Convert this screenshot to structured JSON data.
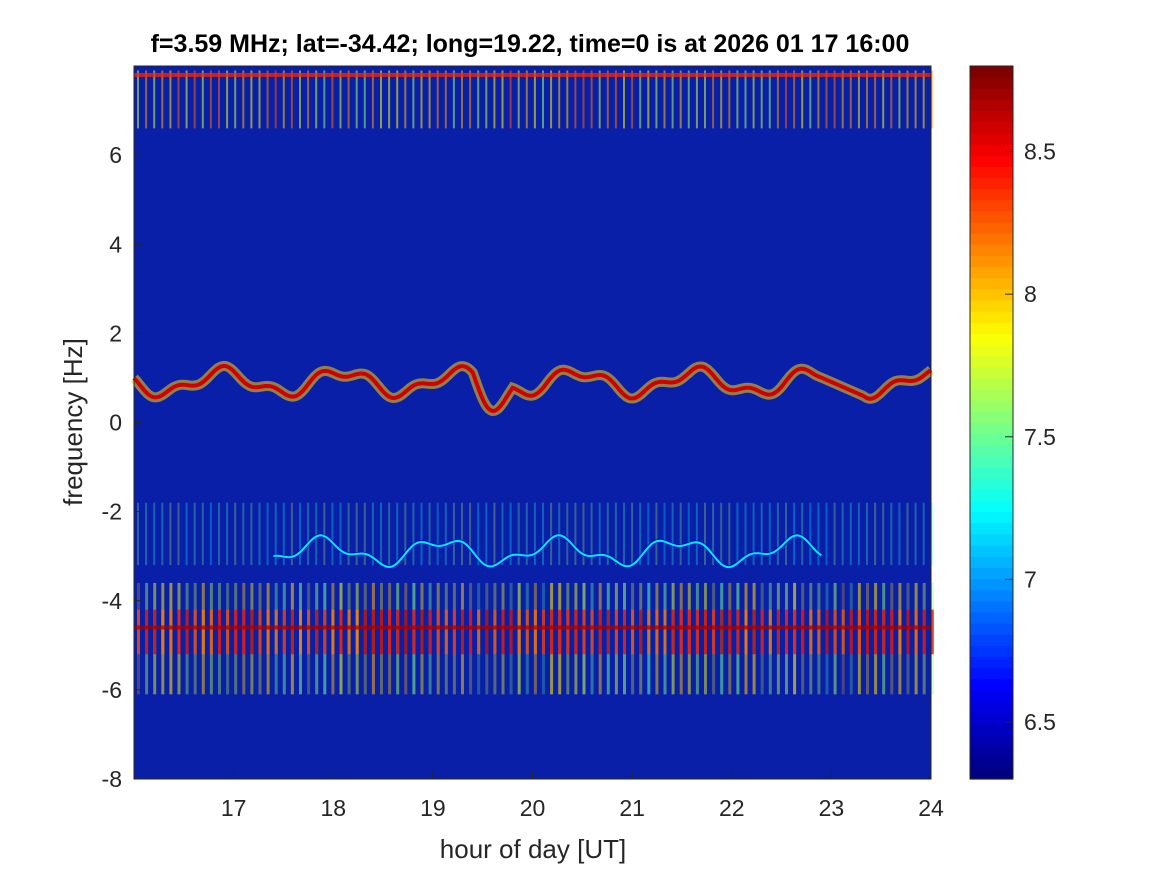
{
  "chart_data": {
    "type": "heatmap",
    "title": "f=3.59 MHz;  lat=-34.42; long=19.22, time=0 is at 2026 01 17 16:00",
    "xlabel": "hour of day [UT]",
    "ylabel": "frequency [Hz]",
    "xlim": [
      16,
      24
    ],
    "ylim": [
      -8,
      8
    ],
    "xticks": [
      "17",
      "18",
      "19",
      "20",
      "21",
      "22",
      "23",
      "24"
    ],
    "yticks": [
      "-8",
      "-6",
      "-4",
      "-2",
      "0",
      "2",
      "4",
      "6"
    ],
    "colorbar": {
      "range": [
        6.3,
        8.8
      ],
      "ticks": [
        "6.5",
        "7",
        "7.5",
        "8",
        "8.5"
      ],
      "colormap": "jet"
    },
    "background_color": "#0a1fa8",
    "features": [
      {
        "label": "",
        "kind": "ridge",
        "freq_hz": 0.9,
        "x_range": [
          16,
          24
        ],
        "peak": 8.6
      },
      {
        "label": "",
        "kind": "ridge",
        "freq_hz": -2.9,
        "x_range": [
          17.4,
          22.9
        ],
        "peak": 7.2
      },
      {
        "label": "",
        "kind": "band",
        "freq_hz": -4.6,
        "x_range": [
          16,
          24
        ],
        "peak": 8.7
      },
      {
        "label": "",
        "kind": "band",
        "freq_hz": 7.8,
        "x_range": [
          16,
          24
        ],
        "peak": 8.4
      }
    ]
  },
  "colors": {
    "frame": "#262626",
    "text": "#262626"
  }
}
